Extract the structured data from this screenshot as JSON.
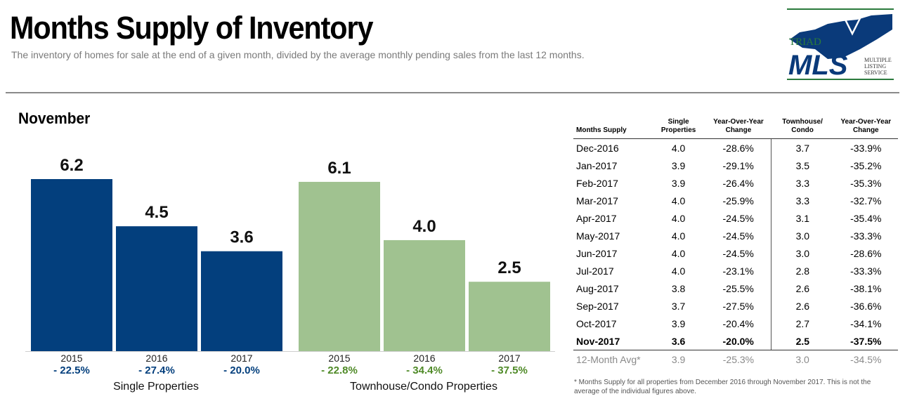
{
  "header": {
    "title": "Months Supply of Inventory",
    "subtitle": "The inventory of homes for sale at the end of a given month, divided by the average monthly pending sales from the last 12 months."
  },
  "logo": {
    "top_text": "TRIAD",
    "main_text": "MLS",
    "line1": "MULTIPLE",
    "line2": "LISTING",
    "line3": "SERVICE"
  },
  "section_label": "November",
  "colors": {
    "single": "#033f7d",
    "townhouse": "#a0c290",
    "single_change": "#033f7d",
    "townhouse_change": "#4f8a27"
  },
  "chart_data": {
    "type": "bar",
    "ylim": [
      0,
      6.2
    ],
    "groups": [
      {
        "name": "Single Properties",
        "categories": [
          "2015",
          "2016",
          "2017"
        ],
        "values": [
          6.2,
          4.5,
          3.6
        ],
        "labels": [
          "6.2",
          "4.5",
          "3.6"
        ],
        "changes": [
          "- 22.5%",
          "- 27.4%",
          "- 20.0%"
        ]
      },
      {
        "name": "Townhouse/Condo Properties",
        "categories": [
          "2015",
          "2016",
          "2017"
        ],
        "values": [
          6.1,
          4.0,
          2.5
        ],
        "labels": [
          "6.1",
          "4.0",
          "2.5"
        ],
        "changes": [
          "- 22.8%",
          "- 34.4%",
          "- 37.5%"
        ]
      }
    ]
  },
  "table": {
    "headers": {
      "months": "Months Supply",
      "single_l1": "Single",
      "single_l2": "Properties",
      "yoy1_l1": "Year-Over-Year",
      "yoy1_l2": "Change",
      "town_l1": "Townhouse/",
      "town_l2": "Condo",
      "yoy2_l1": "Year-Over-Year",
      "yoy2_l2": "Change"
    },
    "rows": [
      [
        "Dec-2016",
        "4.0",
        "-28.6%",
        "3.7",
        "-33.9%"
      ],
      [
        "Jan-2017",
        "3.9",
        "-29.1%",
        "3.5",
        "-35.2%"
      ],
      [
        "Feb-2017",
        "3.9",
        "-26.4%",
        "3.3",
        "-35.3%"
      ],
      [
        "Mar-2017",
        "4.0",
        "-25.9%",
        "3.3",
        "-32.7%"
      ],
      [
        "Apr-2017",
        "4.0",
        "-24.5%",
        "3.1",
        "-35.4%"
      ],
      [
        "May-2017",
        "4.0",
        "-24.5%",
        "3.0",
        "-33.3%"
      ],
      [
        "Jun-2017",
        "4.0",
        "-24.5%",
        "3.0",
        "-28.6%"
      ],
      [
        "Jul-2017",
        "4.0",
        "-23.1%",
        "2.8",
        "-33.3%"
      ],
      [
        "Aug-2017",
        "3.8",
        "-25.5%",
        "2.6",
        "-38.1%"
      ],
      [
        "Sep-2017",
        "3.7",
        "-27.5%",
        "2.6",
        "-36.6%"
      ],
      [
        "Oct-2017",
        "3.9",
        "-20.4%",
        "2.7",
        "-34.1%"
      ],
      [
        "Nov-2017",
        "3.6",
        "-20.0%",
        "2.5",
        "-37.5%"
      ]
    ],
    "avg": [
      "12-Month Avg*",
      "3.9",
      "-25.3%",
      "3.0",
      "-34.5%"
    ]
  },
  "footnote": "* Months Supply for all properties from December 2016 through November 2017. This is not the average of the individual figures above."
}
